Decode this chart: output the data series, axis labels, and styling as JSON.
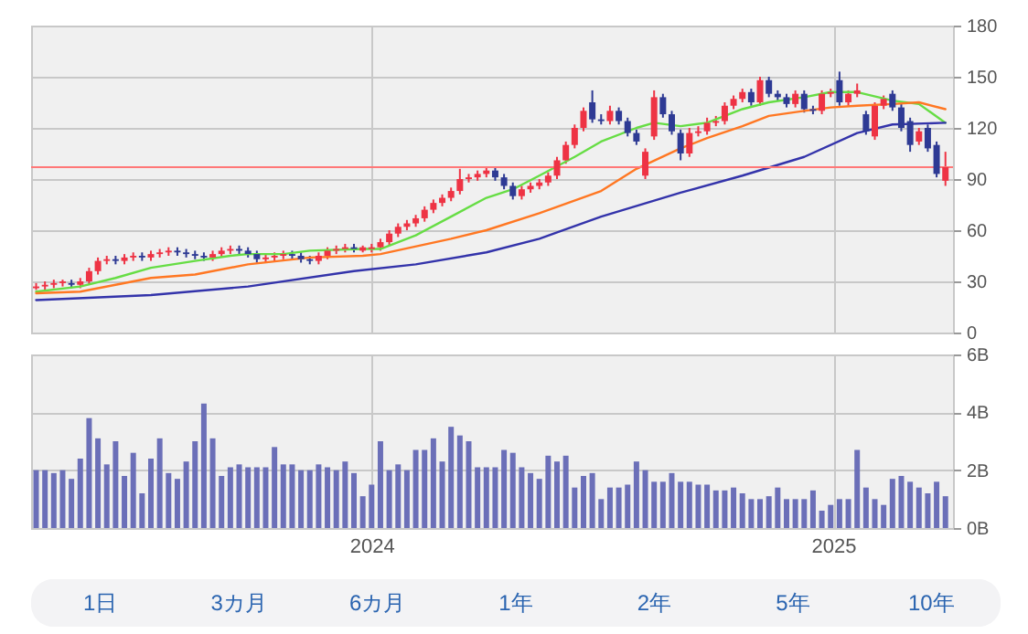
{
  "chart_data": [
    {
      "type": "candlestick",
      "x": [
        "2023-04-10",
        "2023-04-17",
        "2023-04-24",
        "2023-05-01",
        "2023-05-08",
        "2023-05-15",
        "2023-05-22",
        "2023-05-29",
        "2023-06-05",
        "2023-06-12",
        "2023-06-19",
        "2023-06-26",
        "2023-07-03",
        "2023-07-10",
        "2023-07-17",
        "2023-07-24",
        "2023-07-31",
        "2023-08-07",
        "2023-08-14",
        "2023-08-21",
        "2023-08-28",
        "2023-09-04",
        "2023-09-11",
        "2023-09-18",
        "2023-09-25",
        "2023-10-02",
        "2023-10-09",
        "2023-10-16",
        "2023-10-23",
        "2023-10-30",
        "2023-11-06",
        "2023-11-13",
        "2023-11-20",
        "2023-11-27",
        "2023-12-04",
        "2023-12-11",
        "2023-12-18",
        "2023-12-25",
        "2024-01-01",
        "2024-01-08",
        "2024-01-15",
        "2024-01-22",
        "2024-01-29",
        "2024-02-05",
        "2024-02-12",
        "2024-02-19",
        "2024-02-26",
        "2024-03-04",
        "2024-03-11",
        "2024-03-18",
        "2024-03-25",
        "2024-04-01",
        "2024-04-08",
        "2024-04-15",
        "2024-04-22",
        "2024-04-29",
        "2024-05-06",
        "2024-05-13",
        "2024-05-20",
        "2024-05-27",
        "2024-06-03",
        "2024-06-10",
        "2024-06-17",
        "2024-06-24",
        "2024-07-01",
        "2024-07-08",
        "2024-07-15",
        "2024-07-22",
        "2024-07-29",
        "2024-08-05",
        "2024-08-12",
        "2024-08-19",
        "2024-08-26",
        "2024-09-02",
        "2024-09-09",
        "2024-09-16",
        "2024-09-23",
        "2024-09-30",
        "2024-10-07",
        "2024-10-14",
        "2024-10-21",
        "2024-10-28",
        "2024-11-04",
        "2024-11-11",
        "2024-11-18",
        "2024-11-25",
        "2024-12-02",
        "2024-12-09",
        "2024-12-16",
        "2024-12-23",
        "2024-12-30",
        "2025-01-06",
        "2025-01-13",
        "2025-01-20",
        "2025-01-27",
        "2025-02-03",
        "2025-02-10",
        "2025-02-17",
        "2025-02-24",
        "2025-03-03",
        "2025-03-10",
        "2025-03-17",
        "2025-03-24",
        "2025-03-31"
      ],
      "ohlc": [
        [
          26,
          29,
          25,
          27
        ],
        [
          27,
          30,
          25,
          28
        ],
        [
          28,
          31,
          26,
          29
        ],
        [
          29,
          31,
          27,
          30
        ],
        [
          29,
          31,
          26,
          28
        ],
        [
          28,
          32,
          26,
          30
        ],
        [
          30,
          38,
          28,
          36
        ],
        [
          36,
          44,
          34,
          42
        ],
        [
          42,
          45,
          40,
          43
        ],
        [
          43,
          45,
          40,
          42
        ],
        [
          42,
          46,
          40,
          44
        ],
        [
          44,
          47,
          42,
          45
        ],
        [
          45,
          47,
          42,
          44
        ],
        [
          44,
          48,
          42,
          46
        ],
        [
          46,
          49,
          44,
          47
        ],
        [
          47,
          50,
          45,
          48
        ],
        [
          48,
          50,
          45,
          47
        ],
        [
          47,
          49,
          44,
          46
        ],
        [
          46,
          48,
          43,
          45
        ],
        [
          45,
          47,
          42,
          44
        ],
        [
          44,
          48,
          42,
          46
        ],
        [
          46,
          50,
          44,
          48
        ],
        [
          48,
          51,
          46,
          49
        ],
        [
          49,
          51,
          46,
          48
        ],
        [
          48,
          50,
          44,
          46
        ],
        [
          46,
          48,
          41,
          43
        ],
        [
          43,
          46,
          41,
          44
        ],
        [
          44,
          47,
          42,
          45
        ],
        [
          45,
          48,
          43,
          46
        ],
        [
          46,
          48,
          43,
          45
        ],
        [
          45,
          47,
          41,
          43
        ],
        [
          43,
          45,
          40,
          42
        ],
        [
          42,
          47,
          40,
          45
        ],
        [
          45,
          50,
          43,
          48
        ],
        [
          48,
          51,
          46,
          49
        ],
        [
          49,
          52,
          47,
          50
        ],
        [
          50,
          52,
          47,
          49
        ],
        [
          48,
          51,
          47,
          50
        ],
        [
          49,
          52,
          47,
          50
        ],
        [
          50,
          55,
          48,
          53
        ],
        [
          53,
          60,
          51,
          58
        ],
        [
          58,
          64,
          56,
          62
        ],
        [
          62,
          66,
          60,
          64
        ],
        [
          64,
          69,
          62,
          67
        ],
        [
          67,
          74,
          65,
          72
        ],
        [
          72,
          78,
          70,
          76
        ],
        [
          76,
          81,
          74,
          79
        ],
        [
          79,
          85,
          77,
          83
        ],
        [
          83,
          96,
          81,
          90
        ],
        [
          90,
          93,
          88,
          91
        ],
        [
          91,
          95,
          89,
          93
        ],
        [
          93,
          97,
          91,
          95
        ],
        [
          95,
          97,
          89,
          91
        ],
        [
          91,
          93,
          84,
          86
        ],
        [
          86,
          88,
          78,
          80
        ],
        [
          80,
          86,
          78,
          84
        ],
        [
          84,
          88,
          82,
          86
        ],
        [
          86,
          90,
          84,
          88
        ],
        [
          88,
          94,
          86,
          92
        ],
        [
          92,
          103,
          90,
          101
        ],
        [
          101,
          112,
          99,
          110
        ],
        [
          110,
          122,
          108,
          120
        ],
        [
          120,
          132,
          118,
          130
        ],
        [
          135,
          142,
          123,
          125
        ],
        [
          125,
          128,
          122,
          124
        ],
        [
          124,
          133,
          122,
          130
        ],
        [
          130,
          132,
          122,
          124
        ],
        [
          124,
          126,
          115,
          117
        ],
        [
          117,
          119,
          110,
          112
        ],
        [
          92,
          108,
          90,
          106
        ],
        [
          115,
          142,
          113,
          138
        ],
        [
          138,
          140,
          126,
          128
        ],
        [
          128,
          130,
          116,
          118
        ],
        [
          117,
          119,
          101,
          105
        ],
        [
          105,
          120,
          103,
          117
        ],
        [
          117,
          121,
          115,
          118
        ],
        [
          118,
          126,
          116,
          123
        ],
        [
          123,
          127,
          121,
          124
        ],
        [
          124,
          135,
          122,
          133
        ],
        [
          133,
          139,
          131,
          137
        ],
        [
          137,
          143,
          135,
          141
        ],
        [
          141,
          143,
          133,
          135
        ],
        [
          135,
          150,
          133,
          148
        ],
        [
          148,
          150,
          138,
          140
        ],
        [
          140,
          142,
          136,
          138
        ],
        [
          138,
          140,
          132,
          134
        ],
        [
          134,
          142,
          132,
          140
        ],
        [
          140,
          142,
          129,
          131
        ],
        [
          131,
          133,
          128,
          130
        ],
        [
          130,
          142,
          128,
          140
        ],
        [
          140,
          143,
          138,
          141
        ],
        [
          148,
          153,
          133,
          135
        ],
        [
          135,
          142,
          133,
          140
        ],
        [
          140,
          146,
          138,
          142
        ],
        [
          128,
          130,
          116,
          118
        ],
        [
          115,
          135,
          113,
          133
        ],
        [
          133,
          139,
          131,
          137
        ],
        [
          140,
          142,
          130,
          132
        ],
        [
          132,
          134,
          118,
          120
        ],
        [
          124,
          126,
          106,
          110
        ],
        [
          112,
          120,
          110,
          118
        ],
        [
          120,
          122,
          106,
          108
        ],
        [
          110,
          112,
          91,
          93
        ],
        [
          89,
          106,
          86,
          97
        ]
      ],
      "colors": [
        "#ee3344",
        "#ee3344",
        "#ee3344",
        "#ee3344",
        "#2e3a94",
        "#ee3344",
        "#ee3344",
        "#ee3344",
        "#ee3344",
        "#2e3a94",
        "#ee3344",
        "#ee3344",
        "#2e3a94",
        "#ee3344",
        "#ee3344",
        "#ee3344",
        "#2e3a94",
        "#2e3a94",
        "#2e3a94",
        "#2e3a94",
        "#ee3344",
        "#ee3344",
        "#ee3344",
        "#2e3a94",
        "#2e3a94",
        "#2e3a94",
        "#ee3344",
        "#ee3344",
        "#ee3344",
        "#2e3a94",
        "#2e3a94",
        "#2e3a94",
        "#ee3344",
        "#ee3344",
        "#ee3344",
        "#ee3344",
        "#2e3a94",
        "#ee3344",
        "#ee3344",
        "#ee3344",
        "#ee3344",
        "#ee3344",
        "#ee3344",
        "#ee3344",
        "#ee3344",
        "#ee3344",
        "#ee3344",
        "#ee3344",
        "#ee3344",
        "#ee3344",
        "#ee3344",
        "#ee3344",
        "#2e3a94",
        "#2e3a94",
        "#2e3a94",
        "#ee3344",
        "#ee3344",
        "#ee3344",
        "#ee3344",
        "#ee3344",
        "#ee3344",
        "#ee3344",
        "#ee3344",
        "#2e3a94",
        "#2e3a94",
        "#ee3344",
        "#2e3a94",
        "#2e3a94",
        "#2e3a94",
        "#ee3344",
        "#ee3344",
        "#2e3a94",
        "#2e3a94",
        "#2e3a94",
        "#ee3344",
        "#ee3344",
        "#ee3344",
        "#ee3344",
        "#ee3344",
        "#ee3344",
        "#ee3344",
        "#2e3a94",
        "#ee3344",
        "#2e3a94",
        "#2e3a94",
        "#2e3a94",
        "#ee3344",
        "#2e3a94",
        "#2e3a94",
        "#ee3344",
        "#ee3344",
        "#2e3a94",
        "#ee3344",
        "#ee3344",
        "#2e3a94",
        "#ee3344",
        "#ee3344",
        "#2e3a94",
        "#2e3a94",
        "#2e3a94",
        "#ee3344",
        "#2e3a94",
        "#2e3a94",
        "#ee3344"
      ],
      "series": [
        {
          "type": "line",
          "color": "#66dd44",
          "x": [
            "2023-04-10",
            "2023-05-15",
            "2023-06-12",
            "2023-07-10",
            "2023-08-14",
            "2023-09-11",
            "2023-09-25",
            "2023-10-23",
            "2023-11-13",
            "2023-12-25",
            "2024-01-08",
            "2024-02-05",
            "2024-03-04",
            "2024-04-01",
            "2024-04-22",
            "2024-05-13",
            "2024-06-10",
            "2024-07-01",
            "2024-07-29",
            "2024-08-12",
            "2024-09-02",
            "2024-09-23",
            "2024-10-21",
            "2024-11-11",
            "2024-12-09",
            "2024-12-30",
            "2025-01-20",
            "2025-02-17",
            "2025-03-10",
            "2025-03-31"
          ],
          "values": [
            24,
            27,
            32,
            38,
            42,
            45,
            46,
            46,
            48,
            49,
            49,
            57,
            68,
            79,
            84,
            92,
            103,
            112,
            120,
            123,
            121,
            123,
            131,
            135,
            138,
            141,
            141,
            136,
            134,
            123
          ]
        },
        {
          "type": "line",
          "color": "#ff7722",
          "x": [
            "2023-04-10",
            "2023-05-15",
            "2023-07-10",
            "2023-08-14",
            "2023-09-25",
            "2023-11-13",
            "2023-12-25",
            "2024-01-08",
            "2024-03-04",
            "2024-04-01",
            "2024-05-13",
            "2024-07-01",
            "2024-07-29",
            "2024-09-02",
            "2024-09-23",
            "2024-10-21",
            "2024-11-11",
            "2024-12-09",
            "2024-12-30",
            "2025-01-20",
            "2025-02-17",
            "2025-03-10",
            "2025-03-31"
          ],
          "values": [
            23,
            24,
            32,
            34,
            40,
            44,
            45,
            46,
            55,
            60,
            70,
            83,
            96,
            108,
            114,
            121,
            127,
            130,
            132,
            133,
            134,
            135,
            131
          ]
        },
        {
          "type": "line",
          "color": "#3333aa",
          "x": [
            "2023-04-10",
            "2023-07-10",
            "2023-09-25",
            "2023-12-18",
            "2024-02-05",
            "2024-04-01",
            "2024-05-13",
            "2024-07-01",
            "2024-09-02",
            "2024-10-21",
            "2024-12-09",
            "2025-01-20",
            "2025-02-17",
            "2025-03-31"
          ],
          "values": [
            19,
            22,
            27,
            36,
            40,
            47,
            55,
            68,
            82,
            92,
            103,
            117,
            122,
            123
          ]
        }
      ],
      "ref_lines": [
        {
          "axis": "y",
          "value": 97,
          "color": "#ff7777"
        }
      ],
      "xlim": [
        "2023-04-06",
        "2025-04-06"
      ],
      "xticks": [
        {
          "value": "2024-01-01",
          "label": null
        },
        {
          "value": "2025-01-01",
          "label": null
        }
      ],
      "ylim": [
        0,
        180
      ],
      "yticks": [
        0,
        30,
        60,
        90,
        120,
        150,
        180
      ],
      "grid": true,
      "tick_labels": "y"
    },
    {
      "type": "bar",
      "x": [
        "2023-04-10",
        "2023-04-17",
        "2023-04-24",
        "2023-05-01",
        "2023-05-08",
        "2023-05-15",
        "2023-05-22",
        "2023-05-29",
        "2023-06-05",
        "2023-06-12",
        "2023-06-19",
        "2023-06-26",
        "2023-07-03",
        "2023-07-10",
        "2023-07-17",
        "2023-07-24",
        "2023-07-31",
        "2023-08-07",
        "2023-08-14",
        "2023-08-21",
        "2023-08-28",
        "2023-09-04",
        "2023-09-11",
        "2023-09-18",
        "2023-09-25",
        "2023-10-02",
        "2023-10-09",
        "2023-10-16",
        "2023-10-23",
        "2023-10-30",
        "2023-11-06",
        "2023-11-13",
        "2023-11-20",
        "2023-11-27",
        "2023-12-04",
        "2023-12-11",
        "2023-12-18",
        "2023-12-25",
        "2024-01-01",
        "2024-01-08",
        "2024-01-15",
        "2024-01-22",
        "2024-01-29",
        "2024-02-05",
        "2024-02-12",
        "2024-02-19",
        "2024-02-26",
        "2024-03-04",
        "2024-03-11",
        "2024-03-18",
        "2024-03-25",
        "2024-04-01",
        "2024-04-08",
        "2024-04-15",
        "2024-04-22",
        "2024-04-29",
        "2024-05-06",
        "2024-05-13",
        "2024-05-20",
        "2024-05-27",
        "2024-06-03",
        "2024-06-10",
        "2024-06-17",
        "2024-06-24",
        "2024-07-01",
        "2024-07-08",
        "2024-07-15",
        "2024-07-22",
        "2024-07-29",
        "2024-08-05",
        "2024-08-12",
        "2024-08-19",
        "2024-08-26",
        "2024-09-02",
        "2024-09-09",
        "2024-09-16",
        "2024-09-23",
        "2024-09-30",
        "2024-10-07",
        "2024-10-14",
        "2024-10-21",
        "2024-10-28",
        "2024-11-04",
        "2024-11-11",
        "2024-11-18",
        "2024-11-25",
        "2024-12-02",
        "2024-12-09",
        "2024-12-16",
        "2024-12-23",
        "2024-12-30",
        "2025-01-06",
        "2025-01-13",
        "2025-01-20",
        "2025-01-27",
        "2025-02-03",
        "2025-02-10",
        "2025-02-17",
        "2025-02-24",
        "2025-03-03",
        "2025-03-10",
        "2025-03-17",
        "2025-03-24",
        "2025-03-31"
      ],
      "values": [
        2.0,
        2.0,
        1.9,
        2.0,
        1.7,
        2.4,
        3.8,
        3.1,
        2.2,
        3.0,
        1.8,
        2.6,
        1.2,
        2.4,
        3.1,
        1.9,
        1.7,
        2.3,
        3.0,
        4.3,
        3.1,
        1.8,
        2.1,
        2.2,
        2.1,
        2.1,
        2.1,
        2.8,
        2.2,
        2.2,
        2.0,
        2.0,
        2.2,
        2.1,
        2.0,
        2.3,
        1.9,
        1.1,
        1.5,
        3.0,
        2.0,
        2.2,
        2.0,
        2.7,
        2.7,
        3.1,
        2.3,
        3.5,
        3.2,
        3.0,
        2.1,
        2.1,
        2.1,
        2.7,
        2.6,
        2.1,
        1.9,
        1.7,
        2.5,
        2.3,
        2.5,
        1.4,
        1.8,
        1.9,
        1.0,
        1.4,
        1.4,
        1.5,
        2.3,
        2.0,
        1.6,
        1.6,
        1.9,
        1.6,
        1.6,
        1.5,
        1.5,
        1.3,
        1.3,
        1.4,
        1.2,
        1.0,
        1.0,
        1.1,
        1.4,
        1.0,
        1.0,
        1.0,
        1.3,
        0.6,
        0.8,
        1.0,
        1.0,
        2.7,
        1.4,
        1.0,
        0.8,
        1.7,
        1.8,
        1.6,
        1.4,
        1.2,
        1.6,
        1.1
      ],
      "color": "#6b6fb8",
      "xlim": [
        "2023-04-06",
        "2025-04-06"
      ],
      "xticks": [
        {
          "value": "2024-01-01",
          "label": "2024"
        },
        {
          "value": "2025-01-01",
          "label": "2025"
        }
      ],
      "ylim": [
        0,
        6
      ],
      "yticks": [
        {
          "value": 0,
          "label": "0B"
        },
        {
          "value": 2,
          "label": "2B"
        },
        {
          "value": 4,
          "label": "4B"
        },
        {
          "value": 6,
          "label": "6B"
        }
      ],
      "grid": true
    },
    {
      "type": "other",
      "annotations": [
        "1日",
        "3カ月",
        "6カ月",
        "1年",
        "2年",
        "5年",
        "10年"
      ]
    }
  ]
}
